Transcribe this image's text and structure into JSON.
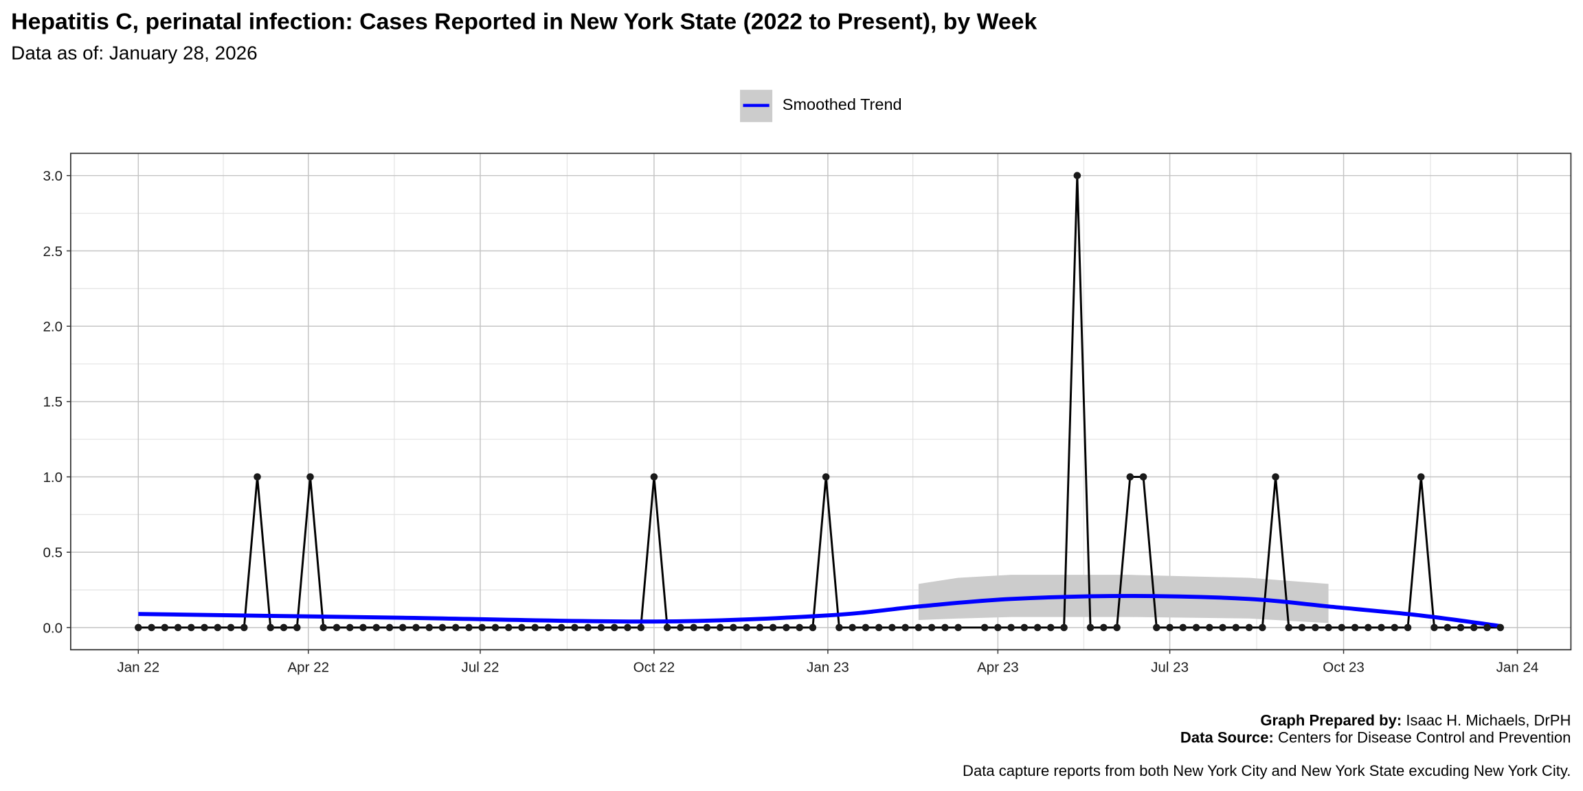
{
  "title": "Hepatitis C, perinatal infection: Cases Reported in New York State (2022 to Present), by Week",
  "subtitle": "Data as of: January 28, 2026",
  "legend": {
    "label": "Smoothed Trend"
  },
  "footer": {
    "prepared_label": "Graph Prepared by:",
    "prepared_value": "Isaac H. Michaels, DrPH",
    "source_label": "Data Source:",
    "source_value": "Centers for Disease Control and Prevention",
    "note": "Data capture reports from both New York City and New York State excuding New York City."
  },
  "colors": {
    "points": "#1a1a1a",
    "trend": "#0000ff",
    "ribbon": "#cccccc"
  },
  "chart_data": {
    "type": "line",
    "title": "Hepatitis C, perinatal infection: Cases Reported in New York State (2022 to Present), by Week",
    "xlabel": "",
    "ylabel": "",
    "ylim": [
      -0.15,
      3.15
    ],
    "start_date": "2022-01-01",
    "interval_days": 7,
    "values": [
      0,
      0,
      0,
      0,
      0,
      0,
      0,
      0,
      0,
      1,
      0,
      0,
      0,
      1,
      0,
      0,
      0,
      0,
      0,
      0,
      0,
      0,
      0,
      0,
      0,
      0,
      0,
      0,
      0,
      0,
      0,
      0,
      0,
      0,
      0,
      0,
      0,
      0,
      0,
      1,
      0,
      0,
      0,
      0,
      0,
      0,
      0,
      0,
      0,
      0,
      0,
      0,
      1,
      0,
      0,
      0,
      0,
      0,
      0,
      0,
      0,
      0,
      0,
      null,
      0,
      0,
      0,
      0,
      0,
      0,
      0,
      3,
      0,
      0,
      0,
      1,
      1,
      0,
      0,
      0,
      0,
      0,
      0,
      0,
      0,
      0,
      1,
      0,
      0,
      0,
      0,
      0,
      0,
      0,
      0,
      0,
      0,
      1,
      0,
      0,
      0,
      0,
      0,
      0
    ],
    "trend": {
      "week_index": [
        0,
        20,
        39,
        52,
        59,
        66,
        75,
        84,
        90,
        97,
        103
      ],
      "values": [
        0.09,
        0.065,
        0.04,
        0.08,
        0.14,
        0.19,
        0.21,
        0.19,
        0.14,
        0.08,
        0.01
      ]
    },
    "ribbon": {
      "week_index": [
        59,
        62,
        66,
        75,
        84,
        90
      ],
      "upper": [
        0.29,
        0.33,
        0.35,
        0.35,
        0.33,
        0.29
      ],
      "lower": [
        0.05,
        0.06,
        0.07,
        0.07,
        0.06,
        0.03
      ]
    },
    "x_ticks": [
      {
        "date": "2022-01-01",
        "label": "Jan 22"
      },
      {
        "date": "2022-04-01",
        "label": "Apr 22"
      },
      {
        "date": "2022-07-01",
        "label": "Jul 22"
      },
      {
        "date": "2022-10-01",
        "label": "Oct 22"
      },
      {
        "date": "2023-01-01",
        "label": "Jan 23"
      },
      {
        "date": "2023-04-01",
        "label": "Apr 23"
      },
      {
        "date": "2023-07-01",
        "label": "Jul 23"
      },
      {
        "date": "2023-10-01",
        "label": "Oct 23"
      },
      {
        "date": "2024-01-01",
        "label": "Jan 24"
      }
    ],
    "y_ticks": [
      {
        "v": 0,
        "label": "0.0"
      },
      {
        "v": 0.5,
        "label": "0.5"
      },
      {
        "v": 1,
        "label": "1.0"
      },
      {
        "v": 1.5,
        "label": "1.5"
      },
      {
        "v": 2,
        "label": "2.0"
      },
      {
        "v": 2.5,
        "label": "2.5"
      },
      {
        "v": 3,
        "label": "3.0"
      }
    ],
    "legend_position": "top",
    "grid": true
  }
}
